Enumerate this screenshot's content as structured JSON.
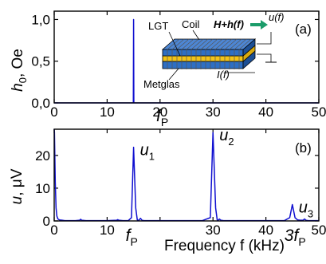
{
  "chart_data": [
    {
      "panel": "(a)",
      "type": "line",
      "xlim": [
        0,
        50
      ],
      "ylim": [
        0,
        1.1
      ],
      "xticks": [
        0,
        10,
        20,
        30,
        40,
        50
      ],
      "xtick_labels": [
        "0",
        "10",
        "20",
        "30",
        "40",
        "50"
      ],
      "yticks": [
        0.0,
        0.5,
        1.0
      ],
      "ytick_labels": [
        "0,0",
        "0,5",
        "1,0"
      ],
      "ylabel": {
        "sym": "h",
        "sub": "0",
        "unit": ", Oe"
      },
      "x_marker": {
        "sym": "f",
        "sub": "P",
        "x": 15
      },
      "grid": false,
      "series": [
        {
          "x": [
            0,
            14.95,
            15.0,
            15.05,
            50
          ],
          "y": [
            0,
            0,
            1.0,
            0,
            0
          ]
        }
      ],
      "inset": {
        "lgt_label": "LGT",
        "coil_label": "Coil",
        "field_label": "H+h(f)",
        "voltage_label": "u(f)",
        "current_label": "I(f)",
        "metglas_label": "Metglas"
      }
    },
    {
      "panel": "(b)",
      "type": "line",
      "xlim": [
        0,
        50
      ],
      "ylim": [
        0,
        28
      ],
      "xticks": [
        0,
        10,
        20,
        30,
        40,
        50
      ],
      "xtick_labels": [
        "0",
        "10",
        "",
        "30",
        "40",
        "50"
      ],
      "yticks": [
        0,
        10,
        20
      ],
      "ytick_labels": [
        "0",
        "10",
        "20"
      ],
      "ylabel": {
        "sym": "u",
        "unit": ", μV"
      },
      "xlabel": "Frequency f (kHz)",
      "x_markers": [
        {
          "label": "f",
          "sub": "P",
          "x": 15
        },
        {
          "label": "3f",
          "sub": "P",
          "x": 45
        }
      ],
      "peak_labels": [
        {
          "sym": "u",
          "sub": "1",
          "x": 15,
          "y": 22.5
        },
        {
          "sym": "u",
          "sub": "2",
          "x": 30,
          "y": 27.0
        },
        {
          "sym": "u",
          "sub": "3",
          "x": 45,
          "y": 5.0
        }
      ],
      "grid": false,
      "series": [
        {
          "x": [
            0,
            0.05,
            0.2,
            0.35,
            0.5,
            0.7,
            1,
            1.5,
            2,
            3,
            4,
            4.8,
            5,
            5.2,
            6,
            8,
            10,
            11.8,
            12,
            12.2,
            13,
            14,
            14.6,
            15.0,
            15.4,
            15.7,
            16,
            16.3,
            16.6,
            17,
            18,
            20,
            22,
            24,
            26,
            28,
            29.5,
            30.0,
            30.5,
            30.8,
            31,
            31.2,
            31.5,
            32,
            33,
            35,
            38,
            40,
            42,
            43.5,
            44.5,
            45.0,
            45.5,
            46,
            46.5,
            47,
            47.3,
            47.6,
            48,
            50
          ],
          "y": [
            28,
            27,
            12,
            4,
            1.5,
            0.6,
            0.3,
            0.2,
            0.1,
            0.1,
            0.1,
            0.2,
            0.5,
            0.2,
            0.1,
            0.1,
            0.1,
            0.2,
            0.4,
            0.2,
            0.1,
            0.1,
            1,
            22.5,
            4,
            0.3,
            0.2,
            0.8,
            0.2,
            0.1,
            0.1,
            0.1,
            0.1,
            0.1,
            0.1,
            0.1,
            1,
            27.0,
            4,
            0.3,
            0.2,
            0.6,
            0.2,
            0.1,
            0.1,
            0.1,
            0.1,
            0.1,
            0.1,
            0.1,
            1,
            5.0,
            1,
            0.3,
            0.2,
            0.2,
            0.6,
            0.2,
            0.1,
            0.1
          ]
        }
      ]
    }
  ]
}
